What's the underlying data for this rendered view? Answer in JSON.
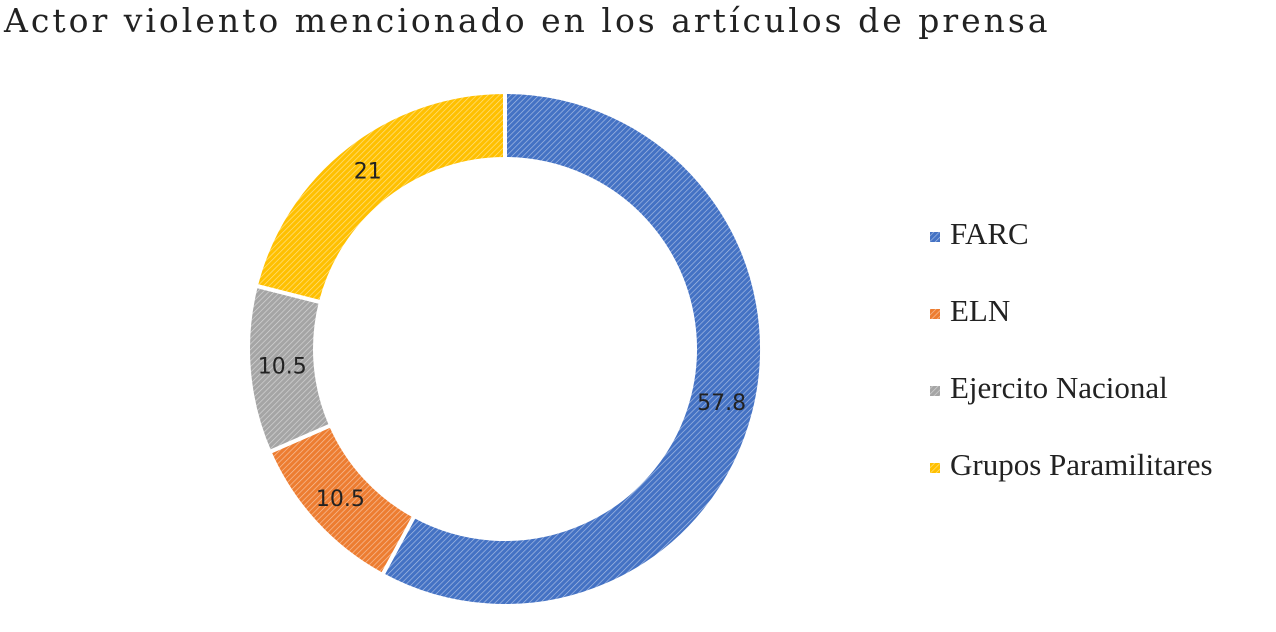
{
  "chart_data": {
    "type": "donut",
    "title": "Actor violento mencionado en los artículos de prensa",
    "categories": [
      "FARC",
      "ELN",
      "Ejercito Nacional",
      "Grupos Paramilitares"
    ],
    "values": [
      57.8,
      10.5,
      10.5,
      21
    ],
    "colors": [
      "#4472c4",
      "#ed7d31",
      "#a5a5a5",
      "#ffc000"
    ],
    "legend": "right"
  }
}
